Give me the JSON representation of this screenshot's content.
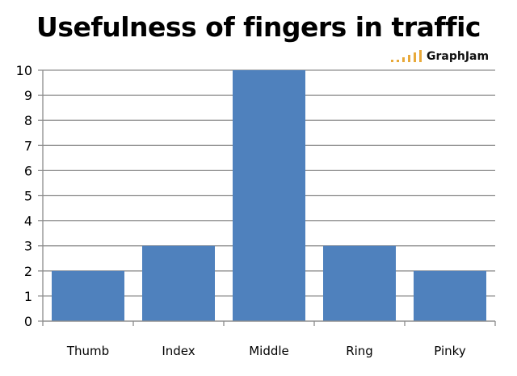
{
  "chart_data": {
    "type": "bar",
    "title": "Usefulness of fingers in traffic",
    "categories": [
      "Thumb",
      "Index",
      "Middle",
      "Ring",
      "Pinky"
    ],
    "values": [
      2,
      3,
      10,
      3,
      2
    ],
    "xlabel": "",
    "ylabel": "",
    "ylim": [
      0,
      10
    ],
    "yticks": [
      "0",
      "1",
      "2",
      "3",
      "4",
      "5",
      "6",
      "7",
      "8",
      "9",
      "10"
    ],
    "grid": true,
    "bar_color": "#4f81bd"
  },
  "watermark": {
    "text": "GraphJam",
    "bar_color": "#e8a93a"
  }
}
